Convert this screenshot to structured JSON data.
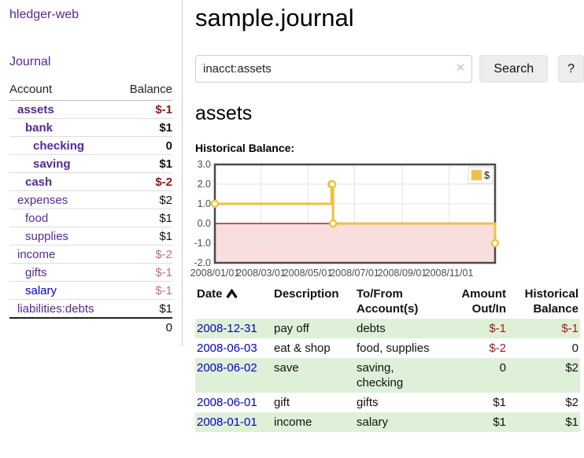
{
  "colors": {
    "link_purple": "#552a94",
    "link_blue": "#0000cc",
    "negative_strong": "#8b1a1a",
    "negative_muted": "#b97575",
    "negative_table": "#9e1c1c",
    "row_stripe_green": "#dff0d8",
    "chart_gold": "#edc240",
    "chart_neg_fill": "#f9dede",
    "chart_zero_line": "#8b0000",
    "chart_grid": "#e6e6e6",
    "chart_border": "#4a4a4a",
    "chart_tick_text": "#4d4d4d"
  },
  "sidebar": {
    "app_title": "hledger-web",
    "nav": {
      "journal_label": "Journal"
    },
    "accounts": {
      "headers": {
        "account": "Account",
        "balance": "Balance"
      },
      "rows": [
        {
          "name": "assets",
          "balance": "$-1",
          "depth": 1,
          "in_subtree": true,
          "balance_style": "neg-strong",
          "link_style": "purple"
        },
        {
          "name": "bank",
          "balance": "$1",
          "depth": 2,
          "in_subtree": true,
          "balance_style": "plain",
          "link_style": "purple"
        },
        {
          "name": "checking",
          "balance": "0",
          "depth": 3,
          "in_subtree": true,
          "balance_style": "plain",
          "link_style": "purple"
        },
        {
          "name": "saving",
          "balance": "$1",
          "depth": 3,
          "in_subtree": true,
          "balance_style": "plain",
          "link_style": "purple"
        },
        {
          "name": "cash",
          "balance": "$-2",
          "depth": 2,
          "in_subtree": true,
          "balance_style": "neg-strong",
          "link_style": "purple"
        },
        {
          "name": "expenses",
          "balance": "$2",
          "depth": 1,
          "in_subtree": false,
          "balance_style": "plain",
          "link_style": "purple"
        },
        {
          "name": "food",
          "balance": "$1",
          "depth": 2,
          "in_subtree": false,
          "balance_style": "plain",
          "link_style": "purple"
        },
        {
          "name": "supplies",
          "balance": "$1",
          "depth": 2,
          "in_subtree": false,
          "balance_style": "plain",
          "link_style": "purple"
        },
        {
          "name": "income",
          "balance": "$-2",
          "depth": 1,
          "in_subtree": false,
          "balance_style": "neg-muted",
          "link_style": "purple"
        },
        {
          "name": "gifts",
          "balance": "$-1",
          "depth": 2,
          "in_subtree": false,
          "balance_style": "neg-muted",
          "link_style": "purple"
        },
        {
          "name": "salary",
          "balance": "$-1",
          "depth": 2,
          "in_subtree": false,
          "balance_style": "neg-muted",
          "link_style": "blue"
        },
        {
          "name": "liabilities:debts",
          "balance": "$1",
          "depth": 1,
          "in_subtree": false,
          "balance_style": "plain",
          "link_style": "purple"
        }
      ],
      "total": "0"
    }
  },
  "main": {
    "title": "sample.journal",
    "search": {
      "value": "inacct:assets",
      "clear_icon": "✕",
      "button_label": "Search",
      "help_label": "?"
    },
    "account_heading": "assets",
    "chart_label": "Historical Balance:",
    "register": {
      "headers": {
        "date": "Date",
        "sort_indicator": "ascending",
        "description": "Description",
        "accounts": "To/From Account(s)",
        "amount": "Amount Out/In",
        "balance": "Historical Balance"
      },
      "rows": [
        {
          "date": "2008-12-31",
          "description": "pay off",
          "accounts": "debts",
          "amount": "$-1",
          "balance": "$-1"
        },
        {
          "date": "2008-06-03",
          "description": "eat & shop",
          "accounts": "food, supplies",
          "amount": "$-2",
          "balance": "0"
        },
        {
          "date": "2008-06-02",
          "description": "save",
          "accounts": "saving, checking",
          "amount": "0",
          "balance": "$2"
        },
        {
          "date": "2008-06-01",
          "description": "gift",
          "accounts": "gifts",
          "amount": "$1",
          "balance": "$2"
        },
        {
          "date": "2008-01-01",
          "description": "income",
          "accounts": "salary",
          "amount": "$1",
          "balance": "$1"
        }
      ]
    }
  },
  "chart_data": {
    "type": "line",
    "step": true,
    "title": "Historical Balance",
    "series": [
      {
        "name": "$",
        "color": "#edc240",
        "points": [
          {
            "date": "2008-01-01",
            "value": 1
          },
          {
            "date": "2008-06-01",
            "value": 2
          },
          {
            "date": "2008-06-02",
            "value": 2
          },
          {
            "date": "2008-06-03",
            "value": 0
          },
          {
            "date": "2008-12-31",
            "value": -1
          }
        ]
      }
    ],
    "x_range": [
      "2008-01-01",
      "2008-12-31"
    ],
    "x_ticks": [
      "2008/01/01",
      "2008/03/01",
      "2008/05/01",
      "2008/07/01",
      "2008/09/01",
      "2008/11/01"
    ],
    "y_range": [
      -2,
      3
    ],
    "y_ticks": [
      "3.0",
      "2.0",
      "1.0",
      "0.0",
      "-1.0",
      "-2.0"
    ],
    "grid": true,
    "legend_position": "top-right",
    "negative_region_below": 0
  }
}
